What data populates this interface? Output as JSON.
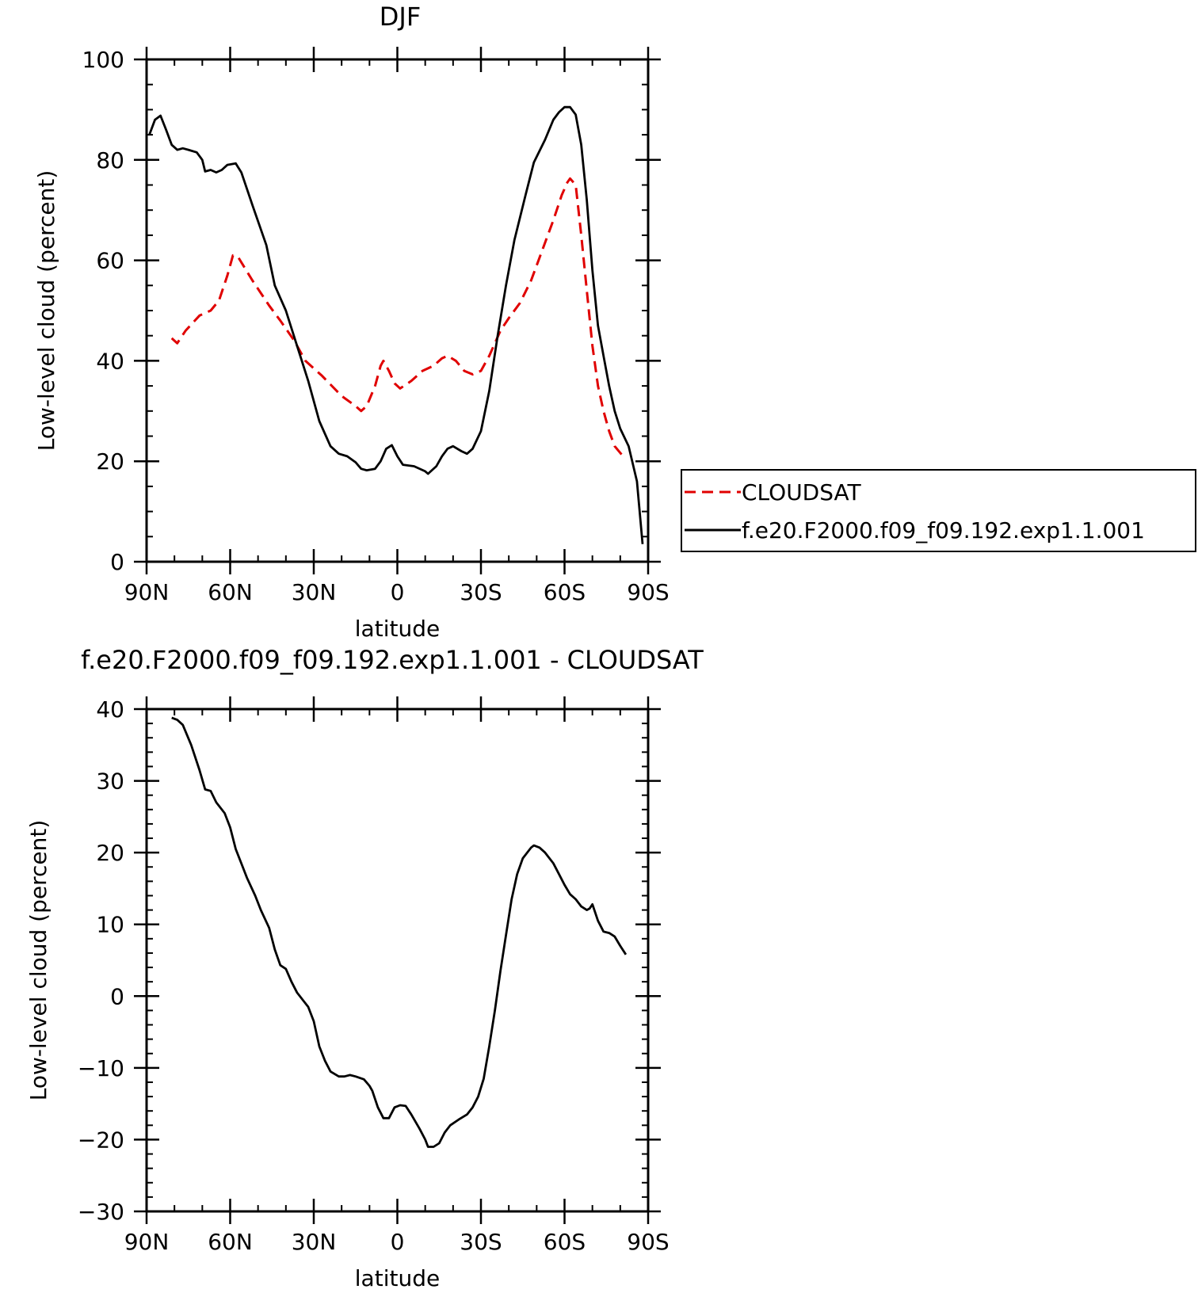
{
  "chart_data": [
    {
      "type": "line",
      "title": "DJF",
      "xlabel": "latitude",
      "ylabel": "Low-level cloud (percent)",
      "xlim": [
        -90,
        90
      ],
      "ylim": [
        0,
        100
      ],
      "x_ticks": [
        -90,
        -60,
        -30,
        0,
        30,
        60,
        90
      ],
      "x_tick_labels": [
        "90N",
        "60N",
        "30N",
        "0",
        "30S",
        "60S",
        "90S"
      ],
      "y_ticks": [
        0,
        20,
        40,
        60,
        80,
        100
      ],
      "y_tick_labels": [
        "0",
        "20",
        "40",
        "60",
        "80",
        "100"
      ],
      "legend_position": "right",
      "series": [
        {
          "name": "CLOUDSAT",
          "color": "#e00000",
          "dash": "dashed",
          "points": [
            [
              -81,
              44.5
            ],
            [
              -79,
              43.5
            ],
            [
              -76,
              46
            ],
            [
              -71,
              49
            ],
            [
              -67,
              50
            ],
            [
              -64,
              52
            ],
            [
              -61,
              57
            ],
            [
              -59,
              61
            ],
            [
              -57,
              60.5
            ],
            [
              -52,
              56
            ],
            [
              -46,
              51
            ],
            [
              -42,
              48
            ],
            [
              -37,
              44
            ],
            [
              -33,
              40
            ],
            [
              -27,
              37
            ],
            [
              -20,
              33
            ],
            [
              -15,
              31
            ],
            [
              -13,
              30
            ],
            [
              -11,
              31
            ],
            [
              -8,
              35
            ],
            [
              -6,
              39
            ],
            [
              -5,
              40
            ],
            [
              -3,
              38
            ],
            [
              -1,
              35.5
            ],
            [
              1,
              34.5
            ],
            [
              5,
              36
            ],
            [
              9,
              38
            ],
            [
              13,
              39
            ],
            [
              16,
              40.5
            ],
            [
              18,
              41
            ],
            [
              21,
              40
            ],
            [
              24,
              38
            ],
            [
              27,
              37.3
            ],
            [
              30,
              38
            ],
            [
              33,
              41
            ],
            [
              37,
              46
            ],
            [
              40,
              48.5
            ],
            [
              44,
              51.5
            ],
            [
              48,
              56
            ],
            [
              52,
              62
            ],
            [
              56,
              68
            ],
            [
              59,
              73
            ],
            [
              61,
              75.5
            ],
            [
              62,
              76.3
            ],
            [
              64,
              75
            ],
            [
              66,
              65
            ],
            [
              68,
              54
            ],
            [
              70,
              43
            ],
            [
              72,
              35
            ],
            [
              74,
              30
            ],
            [
              76,
              26
            ],
            [
              78,
              23
            ],
            [
              81,
              21
            ]
          ]
        },
        {
          "name": "f.e20.F2000.f09_f09.192.exp1.1.001",
          "color": "#000000",
          "dash": "solid",
          "points": [
            [
              -89,
              85
            ],
            [
              -87,
              88
            ],
            [
              -85,
              88.8
            ],
            [
              -83,
              86
            ],
            [
              -81,
              83
            ],
            [
              -79,
              82
            ],
            [
              -77,
              82.3
            ],
            [
              -75,
              82
            ],
            [
              -72,
              81.5
            ],
            [
              -70,
              80
            ],
            [
              -69,
              77.7
            ],
            [
              -67,
              78
            ],
            [
              -65,
              77.5
            ],
            [
              -63,
              78
            ],
            [
              -61,
              79
            ],
            [
              -58,
              79.3
            ],
            [
              -56,
              77.5
            ],
            [
              -52,
              71
            ],
            [
              -47,
              63
            ],
            [
              -44,
              55
            ],
            [
              -40,
              50
            ],
            [
              -36,
              43
            ],
            [
              -32,
              36
            ],
            [
              -28,
              28
            ],
            [
              -24,
              23
            ],
            [
              -21,
              21.5
            ],
            [
              -18,
              21
            ],
            [
              -15,
              19.8
            ],
            [
              -13,
              18.5
            ],
            [
              -11,
              18.2
            ],
            [
              -8,
              18.5
            ],
            [
              -6,
              20
            ],
            [
              -4,
              22.5
            ],
            [
              -2,
              23.2
            ],
            [
              0,
              21
            ],
            [
              2,
              19.3
            ],
            [
              6,
              19
            ],
            [
              10,
              18
            ],
            [
              11,
              17.5
            ],
            [
              14,
              19
            ],
            [
              16,
              21
            ],
            [
              18,
              22.5
            ],
            [
              20,
              23
            ],
            [
              23,
              22
            ],
            [
              25,
              21.5
            ],
            [
              27,
              22.5
            ],
            [
              30,
              26
            ],
            [
              33,
              34
            ],
            [
              36,
              45
            ],
            [
              39,
              55
            ],
            [
              42,
              64
            ],
            [
              46,
              73
            ],
            [
              49,
              79.5
            ],
            [
              53,
              84
            ],
            [
              56,
              88
            ],
            [
              58,
              89.5
            ],
            [
              60,
              90.5
            ],
            [
              62,
              90.5
            ],
            [
              64,
              89
            ],
            [
              66,
              83
            ],
            [
              68,
              72
            ],
            [
              70,
              58
            ],
            [
              72,
              47
            ],
            [
              74,
              41
            ],
            [
              76,
              35
            ],
            [
              78,
              30
            ],
            [
              80,
              26.5
            ],
            [
              83,
              23
            ],
            [
              86,
              16
            ],
            [
              88,
              3.5
            ]
          ]
        }
      ]
    },
    {
      "type": "line",
      "title": "f.e20.F2000.f09_f09.192.exp1.1.001 - CLOUDSAT",
      "xlabel": "latitude",
      "ylabel": "Low-level cloud (percent)",
      "xlim": [
        -90,
        90
      ],
      "ylim": [
        -30,
        40
      ],
      "x_ticks": [
        -90,
        -60,
        -30,
        0,
        30,
        60,
        90
      ],
      "x_tick_labels": [
        "90N",
        "60N",
        "30N",
        "0",
        "30S",
        "60S",
        "90S"
      ],
      "y_ticks": [
        -30,
        -20,
        -10,
        0,
        10,
        20,
        30,
        40
      ],
      "y_tick_labels": [
        "−30",
        "−20",
        "−10",
        "0",
        "10",
        "20",
        "30",
        "40"
      ],
      "series": [
        {
          "color": "#000000",
          "dash": "solid",
          "points": [
            [
              -81,
              38.8
            ],
            [
              -79,
              38.5
            ],
            [
              -77,
              37.8
            ],
            [
              -74,
              35
            ],
            [
              -71,
              31.5
            ],
            [
              -69,
              28.8
            ],
            [
              -67,
              28.6
            ],
            [
              -65,
              27
            ],
            [
              -62,
              25.5
            ],
            [
              -60,
              23.5
            ],
            [
              -58,
              20.5
            ],
            [
              -56,
              18.5
            ],
            [
              -54,
              16.5
            ],
            [
              -51,
              14
            ],
            [
              -49,
              12
            ],
            [
              -46,
              9.5
            ],
            [
              -44,
              6.5
            ],
            [
              -42,
              4.3
            ],
            [
              -40,
              3.8
            ],
            [
              -38,
              2
            ],
            [
              -36,
              0.5
            ],
            [
              -34,
              -0.5
            ],
            [
              -32,
              -1.5
            ],
            [
              -30,
              -3.5
            ],
            [
              -28,
              -7
            ],
            [
              -26,
              -9
            ],
            [
              -24,
              -10.5
            ],
            [
              -21,
              -11.2
            ],
            [
              -19,
              -11.2
            ],
            [
              -17,
              -11
            ],
            [
              -15,
              -11.2
            ],
            [
              -12,
              -11.6
            ],
            [
              -10,
              -12.5
            ],
            [
              -9,
              -13.2
            ],
            [
              -7,
              -15.5
            ],
            [
              -5,
              -17
            ],
            [
              -3,
              -17
            ],
            [
              -1,
              -15.5
            ],
            [
              1,
              -15.2
            ],
            [
              3,
              -15.3
            ],
            [
              5,
              -16.5
            ],
            [
              8,
              -18.5
            ],
            [
              10,
              -20
            ],
            [
              11,
              -21
            ],
            [
              13,
              -21
            ],
            [
              15,
              -20.5
            ],
            [
              17,
              -19
            ],
            [
              19,
              -18
            ],
            [
              22,
              -17.2
            ],
            [
              25,
              -16.5
            ],
            [
              27,
              -15.5
            ],
            [
              29,
              -14
            ],
            [
              31,
              -11.5
            ],
            [
              33,
              -7
            ],
            [
              35,
              -2
            ],
            [
              37,
              3.5
            ],
            [
              39,
              8.5
            ],
            [
              41,
              13.5
            ],
            [
              43,
              17
            ],
            [
              45,
              19.2
            ],
            [
              48,
              20.7
            ],
            [
              49,
              21
            ],
            [
              51,
              20.7
            ],
            [
              53,
              20
            ],
            [
              56,
              18.5
            ],
            [
              58,
              17
            ],
            [
              60,
              15.5
            ],
            [
              62,
              14.2
            ],
            [
              64,
              13.5
            ],
            [
              66,
              12.5
            ],
            [
              68,
              12
            ],
            [
              69,
              12.2
            ],
            [
              70,
              12.8
            ],
            [
              72,
              10.5
            ],
            [
              74,
              9
            ],
            [
              76,
              8.8
            ],
            [
              78,
              8.3
            ],
            [
              80,
              7
            ],
            [
              82,
              5.8
            ]
          ]
        }
      ]
    }
  ]
}
